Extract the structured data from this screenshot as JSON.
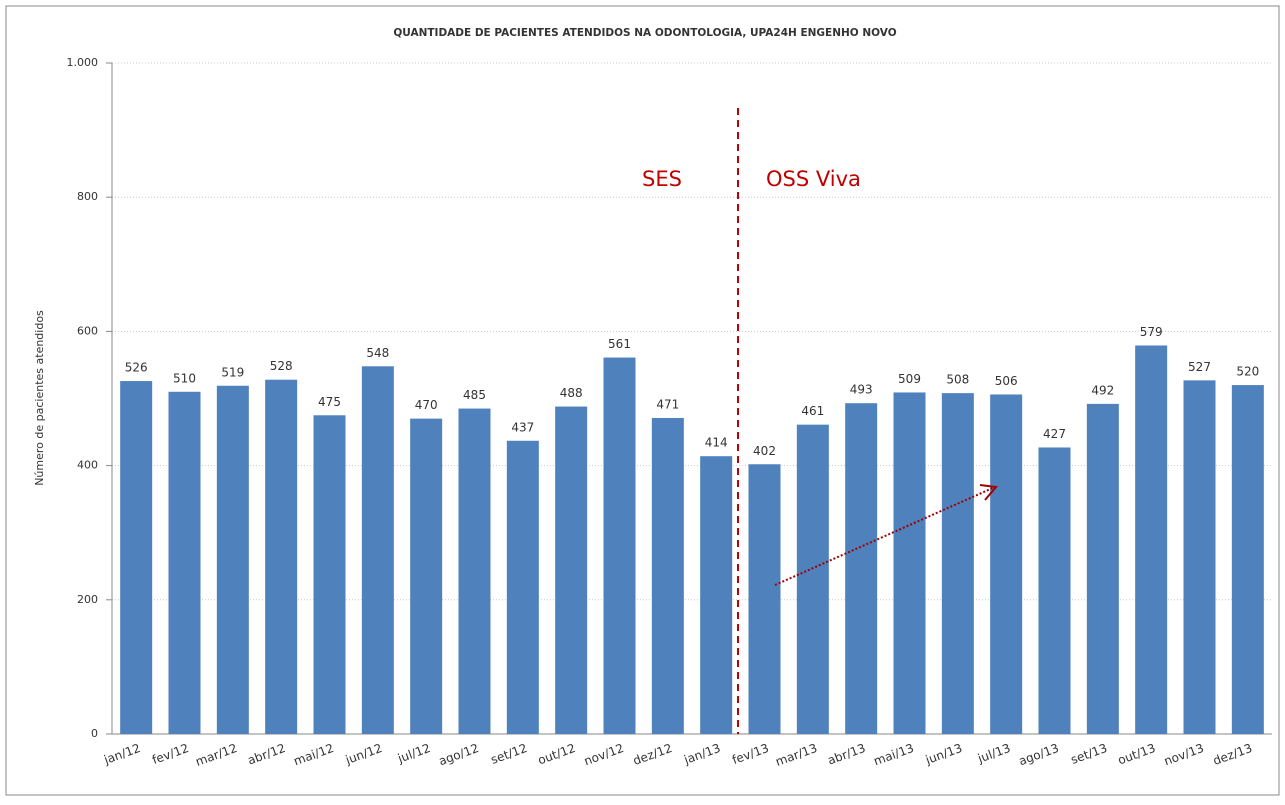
{
  "chart_data": {
    "type": "bar",
    "title": "QUANTIDADE DE PACIENTES ATENDIDOS NA ODONTOLOGIA, UPA24H ENGENHO NOVO",
    "y_label": "Número de pacientes atendidos",
    "annotations": [
      "SES",
      "OSS Viva"
    ],
    "categories": [
      "jan/12",
      "fev/12",
      "mar/12",
      "abr/12",
      "mai/12",
      "jun/12",
      "jul/12",
      "ago/12",
      "set/12",
      "out/12",
      "nov/12",
      "dez/12",
      "jan/13",
      "fev/13",
      "mar/13",
      "abr/13",
      "mai/13",
      "jun/13",
      "jul/13",
      "ago/13",
      "set/13",
      "out/13",
      "nov/13",
      "dez/13"
    ],
    "values": [
      526,
      510,
      519,
      528,
      475,
      548,
      470,
      485,
      437,
      488,
      561,
      471,
      414,
      402,
      461,
      493,
      509,
      508,
      506,
      427,
      492,
      579,
      527,
      520
    ],
    "color": "#4f81bd",
    "ylim": [
      0,
      1000
    ],
    "yticks": [
      0,
      200,
      400,
      600,
      800,
      {
        "value": 1000,
        "label": "1.000"
      }
    ],
    "grid": true
  }
}
